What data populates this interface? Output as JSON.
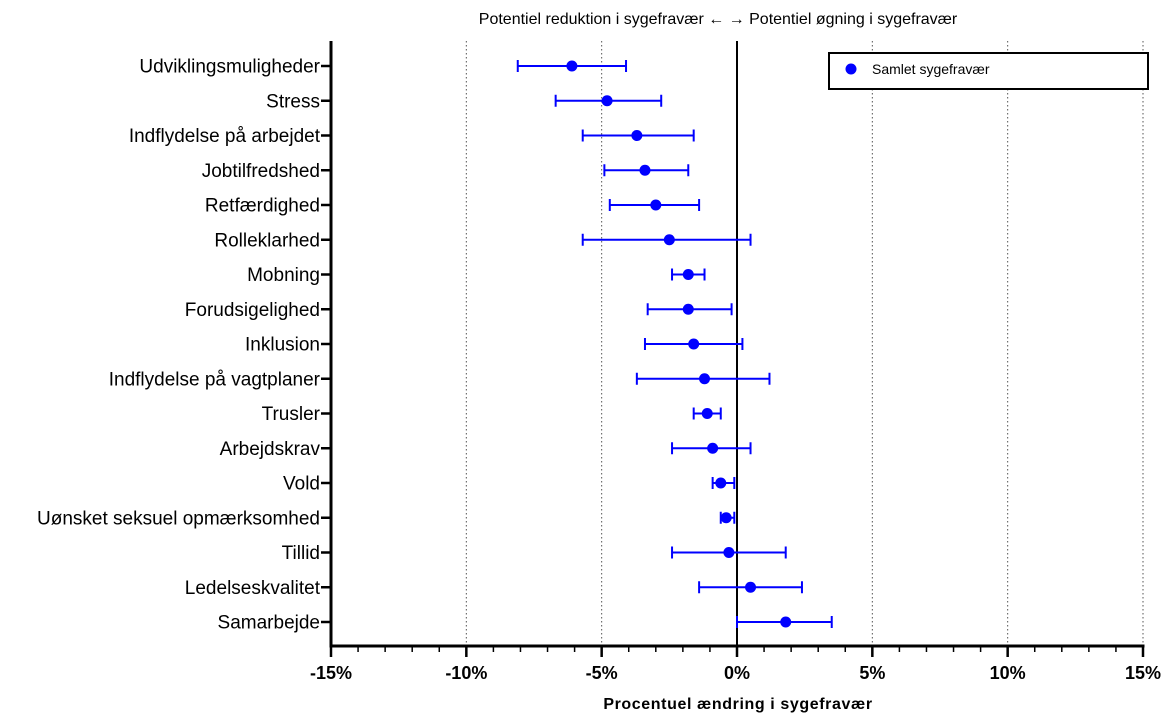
{
  "chart_data": {
    "type": "scatter",
    "subtype": "forest-plot",
    "top_annotation": "Potentiel reduktion i sygefravær ← → Potentiel øgning i sygefravær",
    "xlabel": "Procentuel ændring i sygefravær",
    "ylabel": "",
    "xlim": [
      -15,
      15
    ],
    "xticks": [
      -15,
      -10,
      -5,
      0,
      5,
      10,
      15
    ],
    "xtick_labels": [
      "-15%",
      "-10%",
      "-5%",
      "0%",
      "5%",
      "10%",
      "15%"
    ],
    "grid": "vertical dotted lines at major ticks",
    "legend": {
      "position": "top-right",
      "entries": [
        "Samlet sygefravær"
      ]
    },
    "series": [
      {
        "name": "Samlet sygefravær",
        "color": "#0000ff",
        "categories": [
          "Udviklingsmuligheder",
          "Stress",
          "Indflydelse på arbejdet",
          "Jobtilfredshed",
          "Retfærdighed",
          "Rolleklarhed",
          "Mobning",
          "Forudsigelighed",
          "Inklusion",
          "Indflydelse på vagtplaner",
          "Trusler",
          "Arbejdskrav",
          "Vold",
          "Uønsket seksuel opmærksomhed",
          "Tillid",
          "Ledelseskvalitet",
          "Samarbejde"
        ],
        "values": [
          -6.1,
          -4.8,
          -3.7,
          -3.4,
          -3.0,
          -2.5,
          -1.8,
          -1.8,
          -1.6,
          -1.2,
          -1.1,
          -0.9,
          -0.6,
          -0.4,
          -0.3,
          0.5,
          1.8
        ],
        "ci_low": [
          -8.1,
          -6.7,
          -5.7,
          -4.9,
          -4.7,
          -5.7,
          -2.4,
          -3.3,
          -3.4,
          -3.7,
          -1.6,
          -2.4,
          -0.9,
          -0.6,
          -2.4,
          -1.4,
          0.0
        ],
        "ci_high": [
          -4.1,
          -2.8,
          -1.6,
          -1.8,
          -1.4,
          0.5,
          -1.2,
          -0.2,
          0.2,
          1.2,
          -0.6,
          0.5,
          -0.1,
          -0.1,
          1.8,
          2.4,
          3.5
        ]
      }
    ]
  }
}
